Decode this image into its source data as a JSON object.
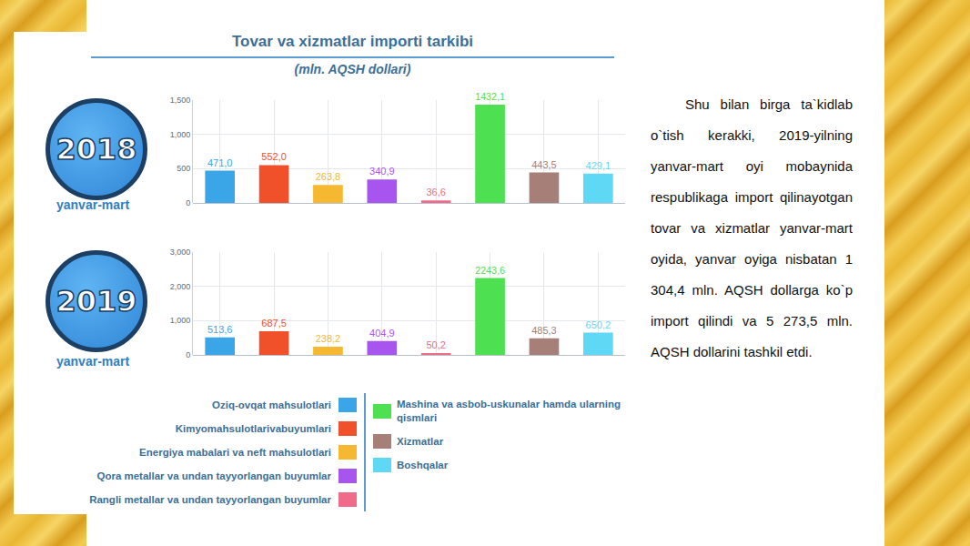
{
  "heading": "Tovar va xizmatlar importi tarkibi",
  "subheading": "(mln. AQSH dollari)",
  "chart_data": [
    {
      "type": "bar",
      "title": "2018",
      "subtitle": "yanvar-mart",
      "categories": [
        "Oziq-ovqat mahsulotlari",
        "Kimyomahsulotlarivabuyumlari",
        "Energiya mabalari va neft mahsulotlari",
        "Qora metallar va undan tayyorlangan buyumlar",
        "Rangli metallar va undan tayyorlangan buyumlar",
        "Mashina va asbob-uskunalar hamda ularning qismlari",
        "Xizmatlar",
        "Boshqalar"
      ],
      "values": [
        471.0,
        552.0,
        263.8,
        340.9,
        36.6,
        1432.1,
        443.5,
        429.1
      ],
      "value_labels": [
        "471,0",
        "552,0",
        "263,8",
        "340,9",
        "36,6",
        "1432,1",
        "443,5",
        "429,1"
      ],
      "colors": [
        "#3aa6e8",
        "#f0502a",
        "#f5b830",
        "#a855f0",
        "#f06a8a",
        "#4de050",
        "#a67f78",
        "#5fd8f5"
      ],
      "ylim": [
        0,
        1500
      ],
      "yticks": [
        0,
        500,
        {
          "value": 1000,
          "label": "1,000"
        },
        {
          "value": 1500,
          "label": "1,500"
        }
      ],
      "grid": true,
      "data_labels": true,
      "tick_labels": "y"
    },
    {
      "type": "bar",
      "title": "2019",
      "subtitle": "yanvar-mart",
      "categories": [
        "Oziq-ovqat mahsulotlari",
        "Kimyomahsulotlarivabuyumlari",
        "Energiya mabalari va neft mahsulotlari",
        "Qora metallar va undan tayyorlangan buyumlar",
        "Rangli metallar va undan tayyorlangan buyumlar",
        "Mashina va asbob-uskunalar hamda ularning qismlari",
        "Xizmatlar",
        "Boshqalar"
      ],
      "values": [
        513.6,
        687.5,
        238.2,
        404.9,
        50.2,
        2243.6,
        485.3,
        650.2
      ],
      "value_labels": [
        "513,6",
        "687,5",
        "238,2",
        "404,9",
        "50,2",
        "2243,6",
        "485,3",
        "650,2"
      ],
      "colors": [
        "#3aa6e8",
        "#f0502a",
        "#f5b830",
        "#a855f0",
        "#f06a8a",
        "#4de050",
        "#a67f78",
        "#5fd8f5"
      ],
      "ylim": [
        0,
        3000
      ],
      "yticks": [
        0,
        {
          "value": 1000,
          "label": "1,000"
        },
        {
          "value": 2000,
          "label": "2,000"
        },
        {
          "value": 3000,
          "label": "3,000"
        }
      ],
      "grid": true,
      "data_labels": true,
      "tick_labels": "y"
    }
  ],
  "paragraph": "Shu bilan birga ta`kidlab o`tish kerakki, 2019-yilning yanvar-mart oyi mobaynida respublikaga import qilinayotgan tovar va xizmatlar yanvar-mart oyida, yanvar oyiga nisbatan 1 304,4 mln. AQSH dollarga ko`p import qilindi va 5 273,5 mln. AQSH dollarini tashkil etdi."
}
